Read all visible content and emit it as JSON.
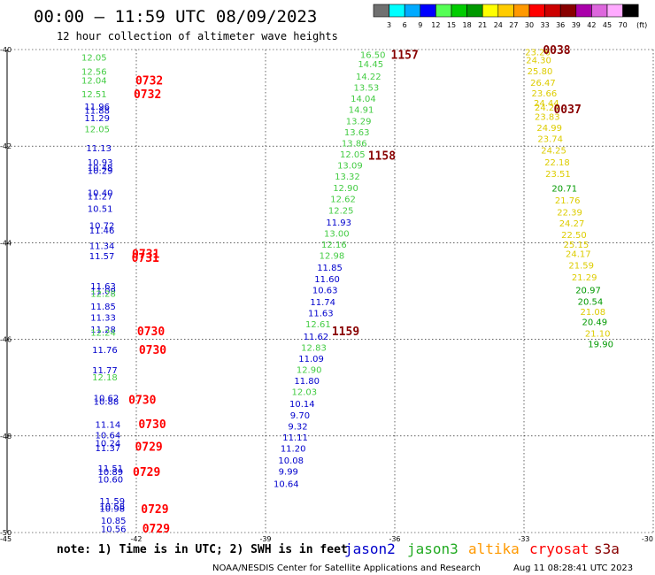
{
  "title": "00:00 — 11:59 UTC 08/09/2023",
  "subtitle": "12 hour collection of altimeter wave heights",
  "note": "note: 1) Time is in UTC; 2) SWH is in feet",
  "credit_left": "NOAA/NESDIS Center for Satellite Applications and Research",
  "credit_right": "Aug 11 08:28:41 UTC 2023",
  "colorbar": {
    "unit": "(ft)",
    "ticks": [
      "3",
      "6",
      "9",
      "12",
      "15",
      "18",
      "21",
      "24",
      "27",
      "30",
      "33",
      "36",
      "39",
      "42",
      "45",
      "70"
    ],
    "colors": [
      "#707070",
      "#00ffff",
      "#00aaff",
      "#0000ff",
      "#55ff55",
      "#00cc00",
      "#009900",
      "#ffff00",
      "#ffcc00",
      "#ff9900",
      "#ff0000",
      "#cc0000",
      "#880000",
      "#aa00aa",
      "#dd66dd",
      "#ffaaff",
      "#000000"
    ]
  },
  "chart_data": {
    "type": "scatter",
    "lon_range": [
      -45,
      -30
    ],
    "lat_range": [
      -50,
      -40
    ],
    "x_ticks": [
      "-45",
      "-42",
      "-39",
      "-36",
      "-33",
      "-30"
    ],
    "y_ticks": [
      "-40",
      "-42",
      "-44",
      "-46",
      "-48",
      "-50"
    ],
    "grid": true,
    "legend": {
      "position": "bottom",
      "entries": [
        {
          "name": "jason2",
          "color": "#0000cc"
        },
        {
          "name": "jason3",
          "color": "#22aa22"
        },
        {
          "name": "altika",
          "color": "#ff9900"
        },
        {
          "name": "cryosat",
          "color": "#ff0000"
        },
        {
          "name": "s3a",
          "color": "#880000"
        }
      ]
    },
    "track_colors": {
      "blue": "#0000cc",
      "green": "#44cc44",
      "yellow": "#ddcc00",
      "dkgreen": "#009900",
      "red": "#ff0000",
      "maroon": "#880000"
    },
    "points": [
      {
        "lon": -42.98,
        "lat": -40.16,
        "v": "12.05",
        "c": "green"
      },
      {
        "lon": -42.98,
        "lat": -40.45,
        "v": "12.56",
        "c": "green"
      },
      {
        "lon": -42.98,
        "lat": -40.63,
        "v": "12.04",
        "c": "green"
      },
      {
        "lon": -42.98,
        "lat": -40.92,
        "v": "12.51",
        "c": "green"
      },
      {
        "lon": -42.91,
        "lat": -41.17,
        "v": "11.96",
        "c": "blue"
      },
      {
        "lon": -42.91,
        "lat": -41.25,
        "v": "11.88",
        "c": "blue"
      },
      {
        "lon": -42.91,
        "lat": -41.41,
        "v": "11.29",
        "c": "blue"
      },
      {
        "lon": -42.91,
        "lat": -41.64,
        "v": "12.05",
        "c": "green"
      },
      {
        "lon": -42.87,
        "lat": -42.03,
        "v": "11.13",
        "c": "blue"
      },
      {
        "lon": -42.84,
        "lat": -42.33,
        "v": "10.93",
        "c": "blue"
      },
      {
        "lon": -42.84,
        "lat": -42.44,
        "v": "10.48",
        "c": "blue"
      },
      {
        "lon": -42.84,
        "lat": -42.5,
        "v": "10.29",
        "c": "blue"
      },
      {
        "lon": -42.84,
        "lat": -42.96,
        "v": "10.40",
        "c": "blue"
      },
      {
        "lon": -42.84,
        "lat": -43.03,
        "v": "11.27",
        "c": "blue"
      },
      {
        "lon": -42.84,
        "lat": -43.29,
        "v": "10.51",
        "c": "blue"
      },
      {
        "lon": -42.8,
        "lat": -43.64,
        "v": "10.72",
        "c": "blue"
      },
      {
        "lon": -42.8,
        "lat": -43.74,
        "v": "11.46",
        "c": "blue"
      },
      {
        "lon": -42.8,
        "lat": -44.06,
        "v": "11.34",
        "c": "blue"
      },
      {
        "lon": -42.8,
        "lat": -44.27,
        "v": "11.57",
        "c": "blue"
      },
      {
        "lon": -42.77,
        "lat": -44.89,
        "v": "11.63",
        "c": "blue"
      },
      {
        "lon": -42.77,
        "lat": -44.99,
        "v": "11.09",
        "c": "blue"
      },
      {
        "lon": -42.77,
        "lat": -45.05,
        "v": "12.28",
        "c": "green"
      },
      {
        "lon": -42.77,
        "lat": -45.31,
        "v": "11.85",
        "c": "blue"
      },
      {
        "lon": -42.77,
        "lat": -45.54,
        "v": "11.33",
        "c": "blue"
      },
      {
        "lon": -42.77,
        "lat": -45.79,
        "v": "11.28",
        "c": "blue"
      },
      {
        "lon": -42.77,
        "lat": -45.85,
        "v": "12.24",
        "c": "green"
      },
      {
        "lon": -42.73,
        "lat": -46.21,
        "v": "11.76",
        "c": "blue"
      },
      {
        "lon": -42.73,
        "lat": -46.63,
        "v": "11.77",
        "c": "blue"
      },
      {
        "lon": -42.73,
        "lat": -46.78,
        "v": "12.18",
        "c": "green"
      },
      {
        "lon": -42.7,
        "lat": -47.21,
        "v": "10.62",
        "c": "blue"
      },
      {
        "lon": -42.7,
        "lat": -47.28,
        "v": "10.88",
        "c": "blue"
      },
      {
        "lon": -42.66,
        "lat": -47.76,
        "v": "11.14",
        "c": "blue"
      },
      {
        "lon": -42.66,
        "lat": -47.98,
        "v": "10.64",
        "c": "blue"
      },
      {
        "lon": -42.66,
        "lat": -48.14,
        "v": "10.24",
        "c": "blue"
      },
      {
        "lon": -42.66,
        "lat": -48.24,
        "v": "11.37",
        "c": "blue"
      },
      {
        "lon": -42.6,
        "lat": -48.66,
        "v": "11.51",
        "c": "blue"
      },
      {
        "lon": -42.6,
        "lat": -48.74,
        "v": "10.89",
        "c": "blue"
      },
      {
        "lon": -42.6,
        "lat": -48.89,
        "v": "10.60",
        "c": "blue"
      },
      {
        "lon": -42.56,
        "lat": -49.34,
        "v": "11.59",
        "c": "blue"
      },
      {
        "lon": -42.56,
        "lat": -49.45,
        "v": "10.58",
        "c": "blue"
      },
      {
        "lon": -42.56,
        "lat": -49.5,
        "v": "10.98",
        "c": "blue"
      },
      {
        "lon": -42.53,
        "lat": -49.74,
        "v": "10.85",
        "c": "blue"
      },
      {
        "lon": -42.53,
        "lat": -49.92,
        "v": "10.56",
        "c": "blue"
      },
      {
        "lon": -36.51,
        "lat": -40.1,
        "v": "16.50",
        "c": "green"
      },
      {
        "lon": -36.56,
        "lat": -40.29,
        "v": "14.45",
        "c": "green"
      },
      {
        "lon": -36.61,
        "lat": -40.55,
        "v": "14.22",
        "c": "green"
      },
      {
        "lon": -36.66,
        "lat": -40.78,
        "v": "13.53",
        "c": "green"
      },
      {
        "lon": -36.73,
        "lat": -41.01,
        "v": "14.04",
        "c": "green"
      },
      {
        "lon": -36.78,
        "lat": -41.24,
        "v": "14.91",
        "c": "green"
      },
      {
        "lon": -36.84,
        "lat": -41.47,
        "v": "13.29",
        "c": "green"
      },
      {
        "lon": -36.88,
        "lat": -41.7,
        "v": "13.63",
        "c": "green"
      },
      {
        "lon": -36.94,
        "lat": -41.93,
        "v": "13.86",
        "c": "green"
      },
      {
        "lon": -36.98,
        "lat": -42.16,
        "v": "12.05",
        "c": "green"
      },
      {
        "lon": -37.04,
        "lat": -42.39,
        "v": "13.09",
        "c": "green"
      },
      {
        "lon": -37.1,
        "lat": -42.62,
        "v": "13.32",
        "c": "green"
      },
      {
        "lon": -37.14,
        "lat": -42.86,
        "v": "12.90",
        "c": "green"
      },
      {
        "lon": -37.2,
        "lat": -43.09,
        "v": "12.62",
        "c": "green"
      },
      {
        "lon": -37.25,
        "lat": -43.32,
        "v": "12.25",
        "c": "green"
      },
      {
        "lon": -37.3,
        "lat": -43.57,
        "v": "11.93",
        "c": "blue"
      },
      {
        "lon": -37.35,
        "lat": -43.8,
        "v": "13.00",
        "c": "green"
      },
      {
        "lon": -37.41,
        "lat": -44.03,
        "v": "12.16",
        "c": "green"
      },
      {
        "lon": -37.46,
        "lat": -44.26,
        "v": "12.98",
        "c": "green"
      },
      {
        "lon": -37.51,
        "lat": -44.51,
        "v": "11.85",
        "c": "blue"
      },
      {
        "lon": -37.57,
        "lat": -44.74,
        "v": "11.60",
        "c": "blue"
      },
      {
        "lon": -37.62,
        "lat": -44.97,
        "v": "10.63",
        "c": "blue"
      },
      {
        "lon": -37.67,
        "lat": -45.22,
        "v": "11.74",
        "c": "blue"
      },
      {
        "lon": -37.72,
        "lat": -45.45,
        "v": "11.63",
        "c": "blue"
      },
      {
        "lon": -37.78,
        "lat": -45.68,
        "v": "12.61",
        "c": "green"
      },
      {
        "lon": -37.83,
        "lat": -45.93,
        "v": "11.62",
        "c": "blue"
      },
      {
        "lon": -37.88,
        "lat": -46.16,
        "v": "12.83",
        "c": "green"
      },
      {
        "lon": -37.94,
        "lat": -46.39,
        "v": "11.09",
        "c": "blue"
      },
      {
        "lon": -37.99,
        "lat": -46.62,
        "v": "12.90",
        "c": "green"
      },
      {
        "lon": -38.04,
        "lat": -46.85,
        "v": "11.80",
        "c": "blue"
      },
      {
        "lon": -38.1,
        "lat": -47.08,
        "v": "12.03",
        "c": "green"
      },
      {
        "lon": -38.15,
        "lat": -47.33,
        "v": "10.14",
        "c": "blue"
      },
      {
        "lon": -38.2,
        "lat": -47.56,
        "v": "9.70",
        "c": "blue"
      },
      {
        "lon": -38.25,
        "lat": -47.79,
        "v": "9.32",
        "c": "blue"
      },
      {
        "lon": -38.31,
        "lat": -48.02,
        "v": "11.11",
        "c": "blue"
      },
      {
        "lon": -38.36,
        "lat": -48.25,
        "v": "11.20",
        "c": "blue"
      },
      {
        "lon": -38.41,
        "lat": -48.5,
        "v": "10.08",
        "c": "blue"
      },
      {
        "lon": -38.47,
        "lat": -48.73,
        "v": "9.99",
        "c": "blue"
      },
      {
        "lon": -38.52,
        "lat": -48.98,
        "v": "10.64",
        "c": "blue"
      },
      {
        "lon": -32.68,
        "lat": -40.05,
        "v": "23.26",
        "c": "yellow"
      },
      {
        "lon": -32.66,
        "lat": -40.21,
        "v": "24.30",
        "c": "yellow"
      },
      {
        "lon": -32.63,
        "lat": -40.44,
        "v": "25.80",
        "c": "yellow"
      },
      {
        "lon": -32.56,
        "lat": -40.68,
        "v": "26.47",
        "c": "yellow"
      },
      {
        "lon": -32.53,
        "lat": -40.9,
        "v": "23.66",
        "c": "yellow"
      },
      {
        "lon": -32.48,
        "lat": -41.1,
        "v": "24.44",
        "c": "yellow"
      },
      {
        "lon": -32.46,
        "lat": -41.19,
        "v": "24.28",
        "c": "yellow"
      },
      {
        "lon": -32.46,
        "lat": -41.38,
        "v": "23.83",
        "c": "yellow"
      },
      {
        "lon": -32.41,
        "lat": -41.61,
        "v": "24.99",
        "c": "yellow"
      },
      {
        "lon": -32.39,
        "lat": -41.84,
        "v": "23.74",
        "c": "yellow"
      },
      {
        "lon": -32.31,
        "lat": -42.08,
        "v": "24.25",
        "c": "yellow"
      },
      {
        "lon": -32.23,
        "lat": -42.33,
        "v": "22.18",
        "c": "yellow"
      },
      {
        "lon": -32.21,
        "lat": -42.56,
        "v": "23.51",
        "c": "yellow"
      },
      {
        "lon": -32.06,
        "lat": -42.87,
        "v": "20.71",
        "c": "dkgreen"
      },
      {
        "lon": -31.99,
        "lat": -43.11,
        "v": "21.76",
        "c": "yellow"
      },
      {
        "lon": -31.94,
        "lat": -43.36,
        "v": "22.39",
        "c": "yellow"
      },
      {
        "lon": -31.89,
        "lat": -43.59,
        "v": "24.27",
        "c": "yellow"
      },
      {
        "lon": -31.84,
        "lat": -43.83,
        "v": "22.50",
        "c": "yellow"
      },
      {
        "lon": -31.79,
        "lat": -44.03,
        "v": "25.15",
        "c": "yellow"
      },
      {
        "lon": -31.74,
        "lat": -44.22,
        "v": "24.17",
        "c": "yellow"
      },
      {
        "lon": -31.67,
        "lat": -44.46,
        "v": "21.59",
        "c": "yellow"
      },
      {
        "lon": -31.6,
        "lat": -44.71,
        "v": "21.29",
        "c": "yellow"
      },
      {
        "lon": -31.51,
        "lat": -44.97,
        "v": "20.97",
        "c": "dkgreen"
      },
      {
        "lon": -31.46,
        "lat": -45.21,
        "v": "20.54",
        "c": "dkgreen"
      },
      {
        "lon": -31.4,
        "lat": -45.42,
        "v": "21.08",
        "c": "yellow"
      },
      {
        "lon": -31.36,
        "lat": -45.63,
        "v": "20.49",
        "c": "dkgreen"
      },
      {
        "lon": -31.29,
        "lat": -45.87,
        "v": "21.10",
        "c": "yellow"
      },
      {
        "lon": -31.22,
        "lat": -46.09,
        "v": "19.90",
        "c": "dkgreen"
      }
    ],
    "time_labels": [
      {
        "lon": -41.7,
        "lat": -40.63,
        "t": "0732",
        "c": "red"
      },
      {
        "lon": -41.74,
        "lat": -40.92,
        "t": "0732",
        "c": "red"
      },
      {
        "lon": -41.78,
        "lat": -44.22,
        "t": "0731",
        "c": "red"
      },
      {
        "lon": -41.79,
        "lat": -44.3,
        "t": "0731",
        "c": "red"
      },
      {
        "lon": -41.66,
        "lat": -45.82,
        "t": "0730",
        "c": "red"
      },
      {
        "lon": -41.62,
        "lat": -46.21,
        "t": "0730",
        "c": "red"
      },
      {
        "lon": -41.86,
        "lat": -47.24,
        "t": "0730",
        "c": "red"
      },
      {
        "lon": -41.63,
        "lat": -47.75,
        "t": "0730",
        "c": "red"
      },
      {
        "lon": -41.71,
        "lat": -48.21,
        "t": "0729",
        "c": "red"
      },
      {
        "lon": -41.76,
        "lat": -48.74,
        "t": "0729",
        "c": "red"
      },
      {
        "lon": -41.57,
        "lat": -49.51,
        "t": "0729",
        "c": "red"
      },
      {
        "lon": -41.54,
        "lat": -49.91,
        "t": "0729",
        "c": "red"
      },
      {
        "lon": -35.77,
        "lat": -40.1,
        "t": "1157",
        "c": "maroon"
      },
      {
        "lon": -36.3,
        "lat": -42.19,
        "t": "1158",
        "c": "maroon"
      },
      {
        "lon": -37.14,
        "lat": -45.82,
        "t": "1159",
        "c": "maroon"
      },
      {
        "lon": -32.24,
        "lat": -40.0,
        "t": "0038",
        "c": "maroon"
      },
      {
        "lon": -31.99,
        "lat": -41.23,
        "t": "0037",
        "c": "maroon"
      }
    ]
  }
}
